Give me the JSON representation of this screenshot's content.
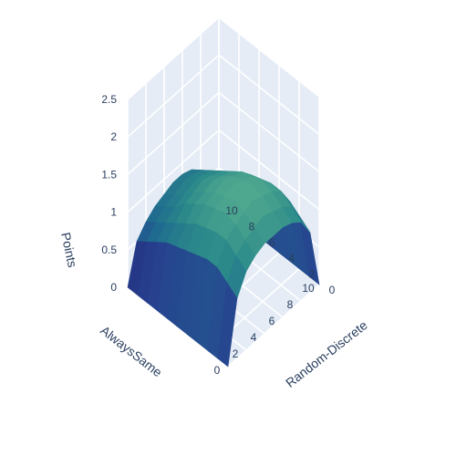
{
  "chart_data": {
    "type": "surface",
    "title": "",
    "x_axis": {
      "title": "AlwaysSame",
      "range": [
        0,
        10
      ],
      "ticks": [
        "0",
        "2",
        "4",
        "6",
        "8",
        "10"
      ]
    },
    "y_axis": {
      "title": "Random-Discrete",
      "range": [
        0,
        10
      ],
      "ticks": [
        "0",
        "2",
        "4",
        "6",
        "8",
        "10"
      ]
    },
    "z_axis": {
      "title": "Points",
      "range": [
        0,
        2.5
      ],
      "ticks": [
        "0",
        "0.5",
        "1",
        "1.5",
        "2",
        "2.5"
      ]
    },
    "grid": true,
    "colorscale": [
      "#1b1f6e",
      "#27408f",
      "#1f6a8f",
      "#2b8a8a",
      "#4fa88f"
    ],
    "pane_color": "#e5ecf6",
    "z": [
      [
        0.0,
        0.0,
        0.0,
        0.0,
        0.0,
        0.0,
        0.0,
        0.0,
        0.0,
        0.0,
        0.0
      ],
      [
        0.8,
        0.9,
        1.0,
        1.0,
        0.95,
        0.9,
        0.85,
        0.8,
        0.7,
        0.6,
        0.5
      ],
      [
        1.05,
        1.15,
        1.25,
        1.25,
        1.2,
        1.15,
        1.05,
        0.95,
        0.85,
        0.75,
        0.65
      ],
      [
        1.15,
        1.25,
        1.35,
        1.4,
        1.35,
        1.3,
        1.2,
        1.1,
        0.95,
        0.85,
        0.75
      ],
      [
        1.2,
        1.3,
        1.4,
        1.45,
        1.4,
        1.35,
        1.25,
        1.15,
        1.0,
        0.9,
        0.8
      ],
      [
        1.2,
        1.35,
        1.45,
        1.45,
        1.45,
        1.4,
        1.3,
        1.2,
        1.05,
        0.95,
        0.85
      ],
      [
        1.2,
        1.3,
        1.4,
        1.45,
        1.4,
        1.35,
        1.25,
        1.15,
        1.05,
        0.95,
        0.85
      ],
      [
        1.15,
        1.25,
        1.35,
        1.4,
        1.35,
        1.3,
        1.2,
        1.1,
        1.0,
        0.9,
        0.8
      ],
      [
        1.05,
        1.15,
        1.25,
        1.25,
        1.2,
        1.15,
        1.05,
        0.95,
        0.85,
        0.75,
        0.65
      ],
      [
        0.8,
        0.9,
        1.0,
        1.0,
        0.95,
        0.9,
        0.85,
        0.8,
        0.7,
        0.6,
        0.5
      ],
      [
        0.0,
        0.0,
        0.0,
        0.0,
        0.0,
        0.0,
        0.0,
        0.0,
        0.0,
        0.0,
        0.0
      ]
    ]
  }
}
